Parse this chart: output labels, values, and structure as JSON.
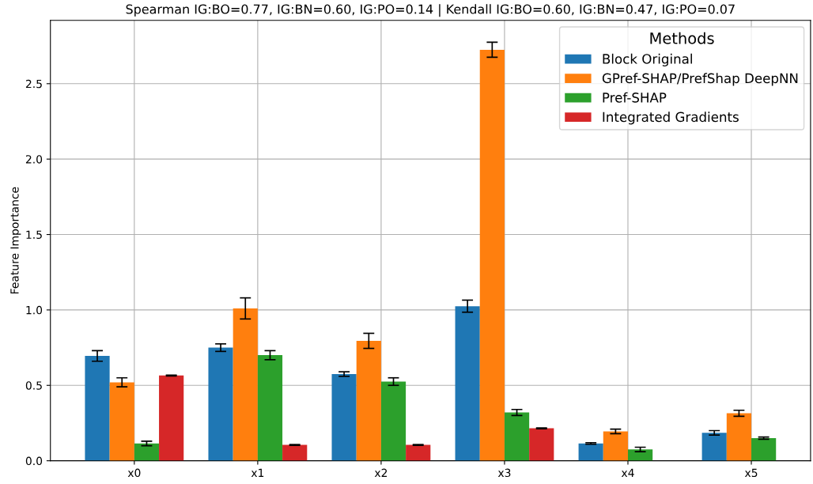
{
  "chart_data": {
    "type": "bar",
    "title": "Spearman IG:BO=0.77, IG:BN=0.60, IG:PO=0.14 | Kendall IG:BO=0.60, IG:BN=0.47, IG:PO=0.07",
    "ylabel": "Feature Importance",
    "categories": [
      "x0",
      "x1",
      "x2",
      "x3",
      "x4",
      "x5"
    ],
    "series": [
      {
        "name": "Block Original",
        "color": "#1f77b4",
        "values": [
          0.695,
          0.75,
          0.575,
          1.025,
          0.115,
          0.185
        ],
        "errors": [
          0.035,
          0.025,
          0.015,
          0.04,
          0.005,
          0.015
        ]
      },
      {
        "name": "GPref-SHAP/PrefShap DeepNN",
        "color": "#ff7f0e",
        "values": [
          0.52,
          1.01,
          0.795,
          2.725,
          0.195,
          0.315
        ],
        "errors": [
          0.03,
          0.07,
          0.05,
          0.05,
          0.015,
          0.02
        ]
      },
      {
        "name": "Pref-SHAP",
        "color": "#2ca02c",
        "values": [
          0.115,
          0.7,
          0.525,
          0.32,
          0.075,
          0.15
        ],
        "errors": [
          0.015,
          0.03,
          0.025,
          0.02,
          0.015,
          0.007
        ]
      },
      {
        "name": "Integrated Gradients",
        "color": "#d62728",
        "values": [
          0.565,
          0.105,
          0.105,
          0.215,
          null,
          null
        ],
        "errors": [
          0.003,
          0.003,
          0.003,
          0.003,
          null,
          null
        ]
      }
    ],
    "ylim": [
      0,
      2.92
    ],
    "yticks": [
      {
        "value": 0,
        "label": "0.0"
      },
      {
        "value": 0.5,
        "label": "0.5"
      },
      {
        "value": 1,
        "label": "1.0"
      },
      {
        "value": 1.5,
        "label": "1.5"
      },
      {
        "value": 2,
        "label": "2.0"
      },
      {
        "value": 2.5,
        "label": "2.5"
      }
    ],
    "grid": true,
    "legend": "top right",
    "legend_title": "Methods"
  }
}
